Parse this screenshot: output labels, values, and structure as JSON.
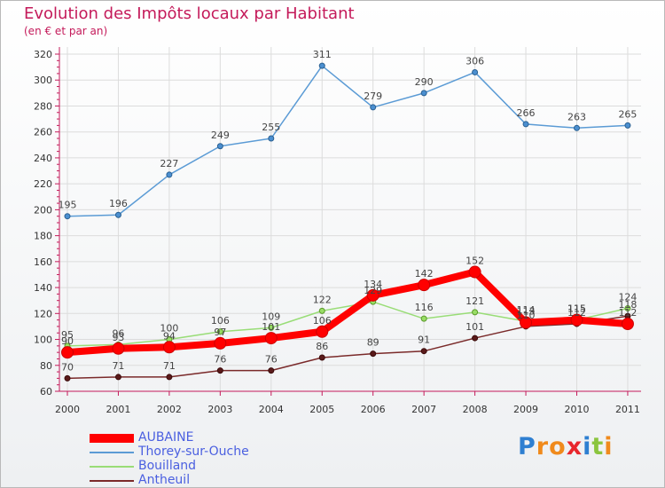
{
  "title": "Evolution des Impôts locaux par Habitant",
  "subtitle": "(en € et par an)",
  "brand": {
    "letters": [
      "P",
      "r",
      "o",
      "x",
      "i",
      "t",
      "i"
    ],
    "colors": [
      "#2e7fd1",
      "#f08a1c",
      "#f08a1c",
      "#e8262c",
      "#2e7fd1",
      "#8bc53f",
      "#f08a1c"
    ]
  },
  "chart_data": {
    "type": "line",
    "title": "Evolution des Impôts locaux par Habitant",
    "subtitle": "(en € et par an)",
    "xlabel": "",
    "ylabel": "",
    "categories": [
      "2000",
      "2001",
      "2002",
      "2003",
      "2004",
      "2005",
      "2006",
      "2007",
      "2008",
      "2009",
      "2010",
      "2011"
    ],
    "ylim": [
      60,
      320
    ],
    "yticks": [
      60,
      80,
      100,
      120,
      140,
      160,
      180,
      200,
      220,
      240,
      260,
      280,
      300,
      320
    ],
    "grid": true,
    "legend_position": "bottom-left",
    "series": [
      {
        "name": "AUBAINE",
        "color": "#ff0000",
        "values": [
          90,
          93,
          94,
          97,
          101,
          106,
          134,
          142,
          152,
          113,
          115,
          112
        ],
        "labels": [
          "90",
          "93",
          "94",
          "97",
          "101",
          "106",
          "134",
          "142",
          "152",
          "113",
          "115",
          "112"
        ]
      },
      {
        "name": "Thorey-sur-Ouche",
        "color": "#5b9bd5",
        "values": [
          195,
          196,
          227,
          249,
          255,
          311,
          279,
          290,
          306,
          266,
          263,
          265
        ],
        "labels": [
          "195",
          "196",
          "227",
          "249",
          "255",
          "311",
          "279",
          "290",
          "306",
          "266",
          "263",
          "265"
        ]
      },
      {
        "name": "Bouilland",
        "color": "#99dd77",
        "values": [
          95,
          96,
          100,
          106,
          109,
          122,
          129,
          116,
          121,
          114,
          115,
          124
        ],
        "labels": [
          "95",
          "96",
          "100",
          "106",
          "109",
          "122",
          "129",
          "116",
          "121",
          "114",
          "115",
          "124"
        ]
      },
      {
        "name": "Antheuil",
        "color": "#7a2a2a",
        "values": [
          70,
          71,
          71,
          76,
          76,
          86,
          89,
          91,
          101,
          110,
          112,
          118
        ],
        "labels": [
          "70",
          "71",
          "71",
          "76",
          "76",
          "86",
          "89",
          "91",
          "101",
          "110",
          "112",
          "118"
        ]
      }
    ]
  }
}
